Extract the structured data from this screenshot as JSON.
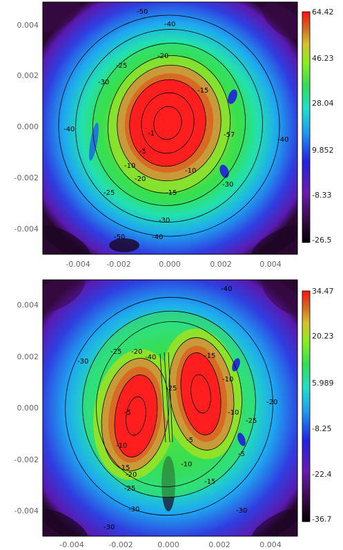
{
  "chart_data": [
    {
      "type": "heatmap",
      "title": "",
      "xlabel": "",
      "ylabel": "",
      "xlim": [
        -0.005,
        0.005
      ],
      "ylim": [
        -0.005,
        0.005
      ],
      "x_ticks": [
        "-0.004",
        "-0.002",
        "0.000",
        "0.002",
        "0.004"
      ],
      "y_ticks": [
        "0.004",
        "0.002",
        "0.000",
        "-0.002",
        "-0.004"
      ],
      "colorbar": {
        "min": -26.5,
        "max": 64.42,
        "ticks": [
          "64.42",
          "46.23",
          "28.04",
          "9.852",
          "-8.33",
          "-26.5"
        ]
      },
      "contour_labels": [
        "-50",
        "-40",
        "-30",
        "-25",
        "-20",
        "-15",
        "-10",
        "-5",
        "-1",
        "-57",
        "-40",
        "-30",
        "-25",
        "-20",
        "-15",
        "-10",
        "-30",
        "-40",
        "-50",
        "-40"
      ],
      "peak_center": [
        0.0,
        0.0
      ],
      "grid": false
    },
    {
      "type": "heatmap",
      "title": "",
      "xlabel": "",
      "ylabel": "",
      "xlim": [
        -0.005,
        0.005
      ],
      "ylim": [
        -0.005,
        0.005
      ],
      "x_ticks": [
        "-0.004",
        "-0.002",
        "0.000",
        "0.002",
        "0.004"
      ],
      "y_ticks": [
        "0.004",
        "0.002",
        "0.000",
        "-0.002",
        "-0.004"
      ],
      "colorbar": {
        "min": -36.7,
        "max": 34.47,
        "ticks": [
          "34.47",
          "20.23",
          "5.989",
          "-8.25",
          "-22.4",
          "-36.7"
        ]
      },
      "contour_labels": [
        "-40",
        "-30",
        "-25",
        "-20",
        "-15",
        "-10",
        "-5",
        "-5",
        "-10",
        "-15",
        "-20",
        "-25",
        "-30",
        "-25",
        "-10",
        "-5",
        "-10",
        "-15",
        "-20",
        "-25",
        "-30",
        "-40",
        "-30"
      ],
      "peak_centers": [
        [
          -0.0015,
          -0.0005
        ],
        [
          0.0012,
          0.0002
        ]
      ],
      "grid": false
    }
  ]
}
